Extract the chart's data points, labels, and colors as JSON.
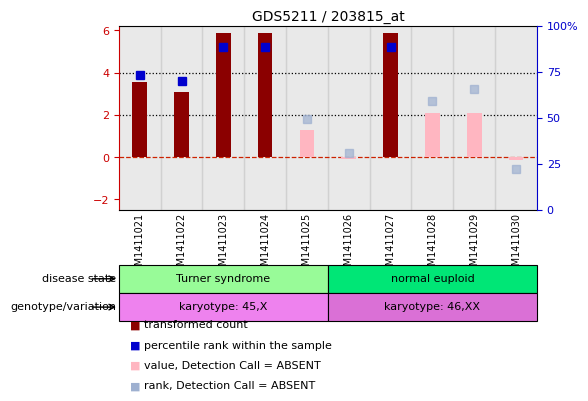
{
  "title": "GDS5211 / 203815_at",
  "samples": [
    "GSM1411021",
    "GSM1411022",
    "GSM1411023",
    "GSM1411024",
    "GSM1411025",
    "GSM1411026",
    "GSM1411027",
    "GSM1411028",
    "GSM1411029",
    "GSM1411030"
  ],
  "transformed_count": [
    3.55,
    3.1,
    5.85,
    5.85,
    null,
    null,
    5.85,
    null,
    null,
    null
  ],
  "percentile_rank": [
    3.9,
    3.6,
    5.2,
    5.2,
    null,
    null,
    5.2,
    null,
    null,
    null
  ],
  "value_absent": [
    null,
    null,
    null,
    null,
    1.3,
    -0.08,
    null,
    2.1,
    2.1,
    -0.15
  ],
  "rank_absent": [
    null,
    null,
    null,
    null,
    1.8,
    0.2,
    null,
    2.65,
    3.2,
    -0.55
  ],
  "ylim": [
    -2.5,
    6.2
  ],
  "y2lim": [
    0,
    100
  ],
  "yticks": [
    -2,
    0,
    2,
    4,
    6
  ],
  "y2ticks": [
    0,
    25,
    50,
    75,
    100
  ],
  "dotted_lines": [
    2.0,
    4.0
  ],
  "disease_state_groups": [
    {
      "label": "Turner syndrome",
      "start": 0,
      "end": 4,
      "color": "#98FB98"
    },
    {
      "label": "normal euploid",
      "start": 5,
      "end": 9,
      "color": "#00E676"
    }
  ],
  "genotype_groups": [
    {
      "label": "karyotype: 45,X",
      "start": 0,
      "end": 4,
      "color": "#EE82EE"
    },
    {
      "label": "karyotype: 46,XX",
      "start": 5,
      "end": 9,
      "color": "#DA70D6"
    }
  ],
  "colors": {
    "transformed_count": "#8B0000",
    "percentile_rank": "#0000CD",
    "value_absent": "#FFB6C1",
    "rank_absent": "#9EB0D0",
    "dashed_line": "#CC2200",
    "dotted_line": "#000000",
    "axis_left": "#CC0000",
    "axis_right": "#0000CC",
    "bg_sample": "#C0C0C0",
    "plot_border": "#000000"
  },
  "legend_items": [
    {
      "label": "transformed count",
      "color": "#8B0000"
    },
    {
      "label": "percentile rank within the sample",
      "color": "#0000CD"
    },
    {
      "label": "value, Detection Call = ABSENT",
      "color": "#FFB6C1"
    },
    {
      "label": "rank, Detection Call = ABSENT",
      "color": "#9EB0D0"
    }
  ]
}
